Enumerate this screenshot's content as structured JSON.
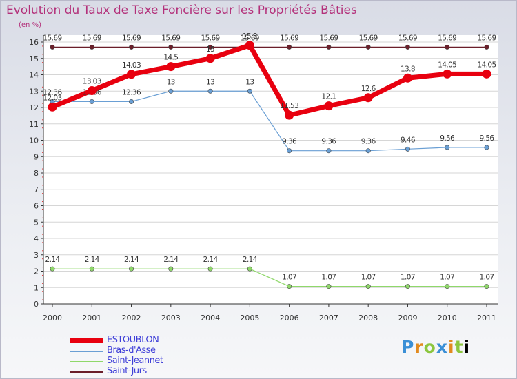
{
  "chart_data": {
    "type": "line",
    "title": "Evolution du Taux de Taxe Foncière sur les Propriétés Bâties",
    "ylabel": "(en %)",
    "xlabel": "",
    "ylim": [
      0,
      16
    ],
    "yticks": [
      0,
      1,
      2,
      3,
      4,
      5,
      6,
      7,
      8,
      9,
      10,
      11,
      12,
      13,
      14,
      15,
      16
    ],
    "categories": [
      "2000",
      "2001",
      "2002",
      "2003",
      "2004",
      "2005",
      "2006",
      "2007",
      "2008",
      "2009",
      "2010",
      "2011"
    ],
    "series": [
      {
        "name": "Saint-Jurs",
        "color": "#6b1f2a",
        "values": [
          15.69,
          15.69,
          15.69,
          15.69,
          15.69,
          15.69,
          15.69,
          15.69,
          15.69,
          15.69,
          15.69,
          15.69
        ],
        "labels": [
          "15.69",
          "15.69",
          "15.69",
          "15.69",
          "15.69",
          "15.69",
          "15.69",
          "15.69",
          "15.69",
          "15.69",
          "15.69",
          "15.69"
        ]
      },
      {
        "name": "Saint-Jeannet",
        "color": "#8fd86a",
        "values": [
          2.14,
          2.14,
          2.14,
          2.14,
          2.14,
          2.14,
          1.07,
          1.07,
          1.07,
          1.07,
          1.07,
          1.07
        ],
        "labels": [
          "2.14",
          "2.14",
          "2.14",
          "2.14",
          "2.14",
          "2.14",
          "1.07",
          "1.07",
          "1.07",
          "1.07",
          "1.07",
          "1.07"
        ]
      },
      {
        "name": "Bras-d'Asse",
        "color": "#6a9fd4",
        "values": [
          12.36,
          12.36,
          12.36,
          13,
          13,
          13,
          9.36,
          9.36,
          9.36,
          9.46,
          9.56,
          9.56
        ],
        "labels": [
          "12.36",
          "12.36",
          "12.36",
          "13",
          "13",
          "13",
          "9.36",
          "9.36",
          "9.36",
          "9.46",
          "9.56",
          "9.56"
        ]
      },
      {
        "name": "ESTOUBLON",
        "color": "#e8000f",
        "values": [
          12.03,
          13.03,
          14.03,
          14.5,
          15,
          15.8,
          11.53,
          12.1,
          12.6,
          13.8,
          14.05,
          14.05
        ],
        "labels": [
          "12.03",
          "13.03",
          "14.03",
          "14.5",
          "15",
          "15.8",
          "11.53",
          "12.1",
          "12.6",
          "13.8",
          "14.05",
          "14.05"
        ]
      }
    ],
    "legend": {
      "position": "bottom-left",
      "items": [
        {
          "name": "ESTOUBLON",
          "color": "#e8000f"
        },
        {
          "name": "Bras-d'Asse",
          "color": "#6a9fd4"
        },
        {
          "name": "Saint-Jeannet",
          "color": "#8fd86a"
        },
        {
          "name": "Saint-Jurs",
          "color": "#6b1f2a"
        }
      ]
    }
  },
  "logo": {
    "letters": [
      "P",
      "r",
      "o",
      "x",
      "i",
      "t",
      "i"
    ]
  }
}
